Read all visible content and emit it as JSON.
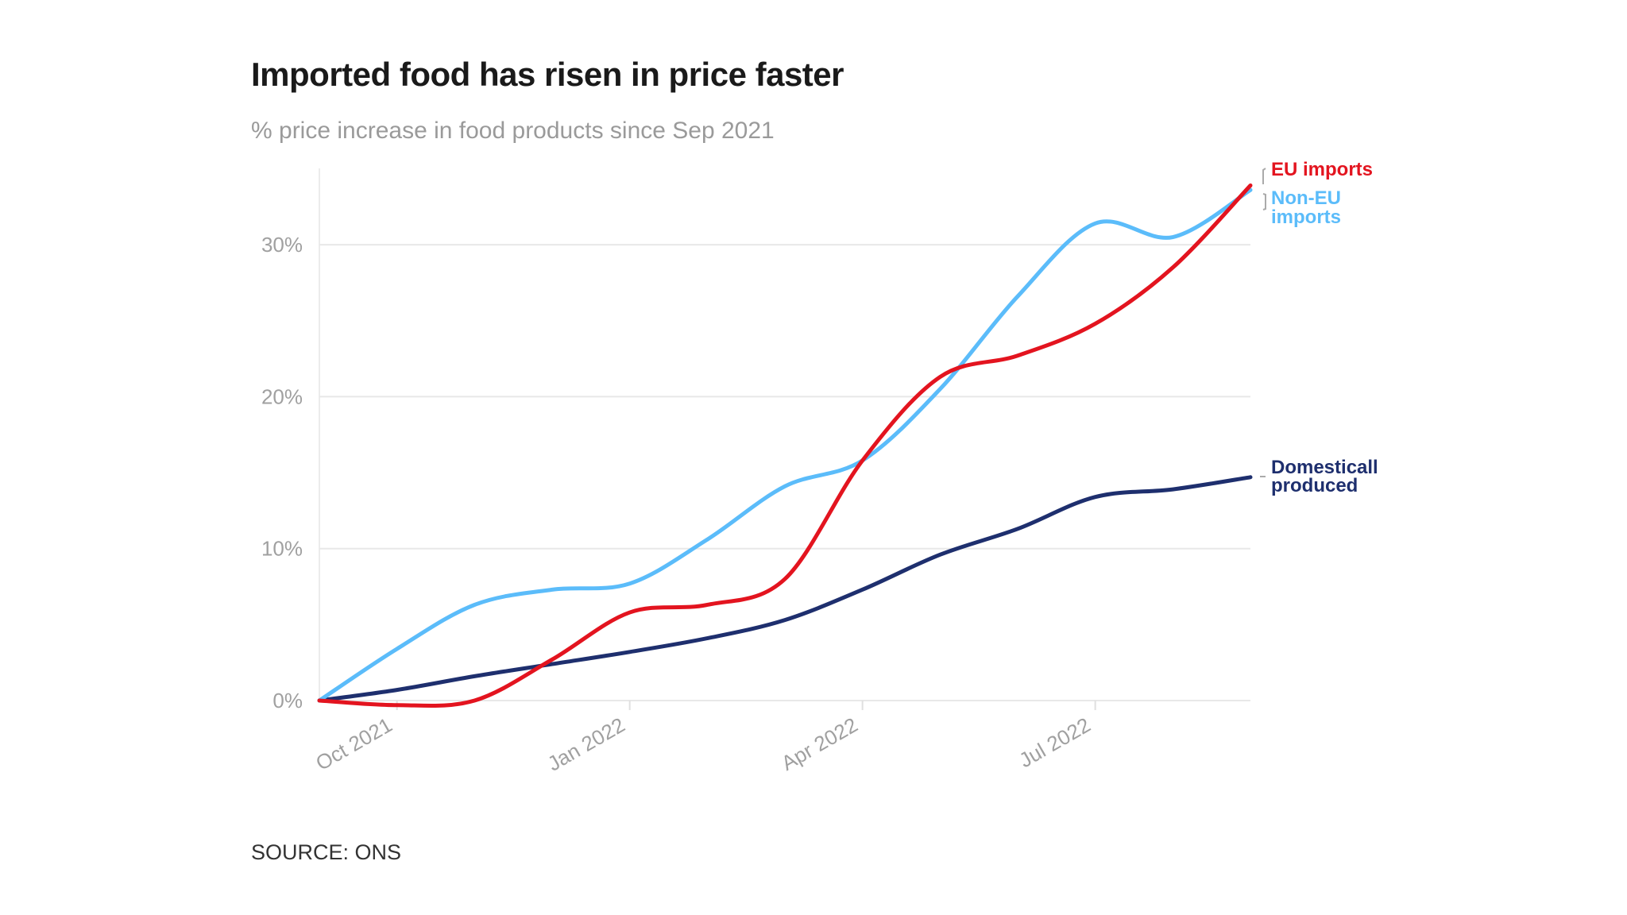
{
  "chart_data": {
    "type": "line",
    "title": "Imported food has risen in price faster",
    "subtitle": "% price increase in food products since Sep 2021",
    "source": "SOURCE: ONS",
    "x": [
      "2021-09",
      "2021-10",
      "2021-11",
      "2021-12",
      "2022-01",
      "2022-02",
      "2022-03",
      "2022-04",
      "2022-05",
      "2022-06",
      "2022-07",
      "2022-08",
      "2022-09"
    ],
    "x_ticks": [
      {
        "value": "2021-10",
        "label": "Oct 2021"
      },
      {
        "value": "2022-01",
        "label": "Jan 2022"
      },
      {
        "value": "2022-04",
        "label": "Apr 2022"
      },
      {
        "value": "2022-07",
        "label": "Jul 2022"
      }
    ],
    "y_ticks": [
      {
        "value": 0,
        "label": "0%"
      },
      {
        "value": 10,
        "label": "10%"
      },
      {
        "value": 20,
        "label": "20%"
      },
      {
        "value": 30,
        "label": "30%"
      }
    ],
    "ylim": [
      0,
      35
    ],
    "grid": "horizontal",
    "legend": "direct labels at right",
    "series": [
      {
        "name": "EU imports",
        "label_lines": [
          "EU imports"
        ],
        "color": "#e3141f",
        "values": [
          0,
          -0.3,
          0,
          2.7,
          5.8,
          6.3,
          8.0,
          15.8,
          21.3,
          22.7,
          24.8,
          28.5,
          33.9
        ]
      },
      {
        "name": "Non-EU imports",
        "label_lines": [
          "Non-EU",
          "imports"
        ],
        "color": "#5bbcfa",
        "values": [
          0,
          3.4,
          6.3,
          7.3,
          7.7,
          10.6,
          14.1,
          15.8,
          20.5,
          26.6,
          31.4,
          30.5,
          33.6
        ]
      },
      {
        "name": "Domesticall produced",
        "label_lines": [
          "Domesticall",
          "produced"
        ],
        "color": "#1e2f6e",
        "values": [
          0,
          0.7,
          1.6,
          2.4,
          3.2,
          4.1,
          5.3,
          7.3,
          9.6,
          11.3,
          13.4,
          13.9,
          14.7
        ]
      }
    ]
  }
}
